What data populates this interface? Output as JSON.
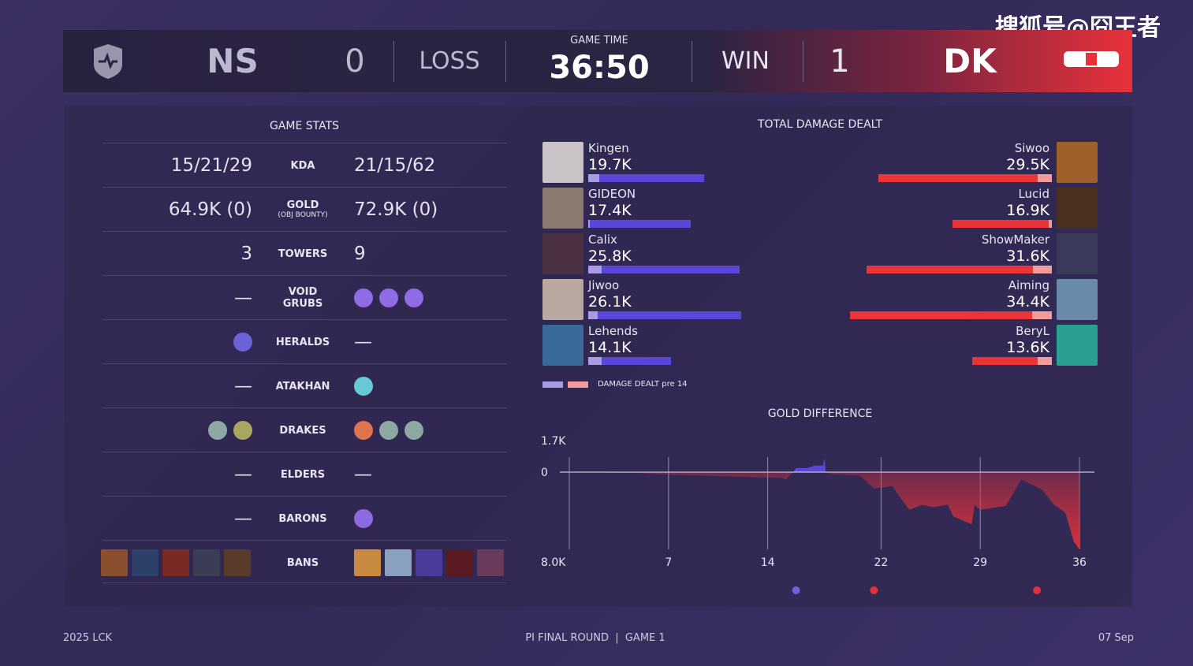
{
  "watermark": "搜狐号@囧王者",
  "header": {
    "left_team": "NS",
    "left_score": "0",
    "left_result": "LOSS",
    "game_time_label": "GAME TIME",
    "game_time": "36:50",
    "right_result": "WIN",
    "right_score": "1",
    "right_team": "DK",
    "accent_right": "#e8323a"
  },
  "game_stats": {
    "title": "GAME STATS",
    "rows": [
      {
        "label": "KDA",
        "left": "15/21/29",
        "right": "21/15/62"
      },
      {
        "label": "GOLD",
        "sublabel": "(OBJ BOUNTY)",
        "left": "64.9K (0)",
        "right": "72.9K (0)"
      },
      {
        "label": "TOWERS",
        "left": "3",
        "right": "9"
      },
      {
        "label": "VOID GRUBS",
        "left": "—",
        "right_icons": [
          "void-grub-icon",
          "void-grub-icon",
          "void-grub-icon"
        ]
      },
      {
        "label": "HERALDS",
        "left_icons": [
          "herald-icon"
        ],
        "right": "—"
      },
      {
        "label": "ATAKHAN",
        "left": "—",
        "right_icons": [
          "atakhan-icon"
        ]
      },
      {
        "label": "DRAKES",
        "left_icons": [
          "cloud-drake-icon",
          "chemtech-drake-icon"
        ],
        "right_icons": [
          "infernal-drake-icon",
          "cloud-drake-icon",
          "cloud-drake-icon"
        ]
      },
      {
        "label": "ELDERS",
        "left": "—",
        "right": "—"
      },
      {
        "label": "BARONS",
        "left": "—",
        "right_icons": [
          "baron-icon"
        ]
      },
      {
        "label": "BANS",
        "left_icons": [
          "ban-champion-icon",
          "ban-champion-icon",
          "ban-champion-icon",
          "ban-champion-icon",
          "ban-champion-icon"
        ],
        "right_icons": [
          "ban-champion-icon",
          "ban-champion-icon",
          "ban-champion-icon",
          "ban-champion-icon",
          "ban-champion-icon"
        ]
      }
    ]
  },
  "damage": {
    "title": "TOTAL DAMAGE DEALT",
    "legend": "DAMAGE DEALT pre 14",
    "colors": {
      "left": "#5a46d8",
      "left_pre": "#a99ae6",
      "right": "#ea3437",
      "right_pre": "#f39a9a"
    },
    "left": [
      {
        "name": "Kingen",
        "value": "19.7K",
        "k": 19.7,
        "pre14_k": 1.9
      },
      {
        "name": "GIDEON",
        "value": "17.4K",
        "k": 17.4,
        "pre14_k": 0.1
      },
      {
        "name": "Calix",
        "value": "25.8K",
        "k": 25.8,
        "pre14_k": 2.3
      },
      {
        "name": "Jiwoo",
        "value": "26.1K",
        "k": 26.1,
        "pre14_k": 1.6
      },
      {
        "name": "Lehends",
        "value": "14.1K",
        "k": 14.1,
        "pre14_k": 2.3
      }
    ],
    "right": [
      {
        "name": "Siwoo",
        "value": "29.5K",
        "k": 29.5,
        "pre14_k": 2.4
      },
      {
        "name": "Lucid",
        "value": "16.9K",
        "k": 16.9,
        "pre14_k": 0.5
      },
      {
        "name": "ShowMaker",
        "value": "31.6K",
        "k": 31.6,
        "pre14_k": 3.2
      },
      {
        "name": "Aiming",
        "value": "34.4K",
        "k": 34.4,
        "pre14_k": 3.3
      },
      {
        "name": "BeryL",
        "value": "13.6K",
        "k": 13.6,
        "pre14_k": 2.4
      }
    ]
  },
  "chart_data": {
    "type": "area",
    "title": "GOLD DIFFERENCE",
    "y_top_label": "1.7K",
    "y_zero_label": "0",
    "y_bottom_label": "8.0K",
    "ylim": [
      -8000,
      1700
    ],
    "xticks": [
      "7",
      "14",
      "22",
      "29",
      "36"
    ],
    "xlim": [
      0,
      36
    ],
    "x": [
      0,
      5,
      6.2,
      10,
      15,
      15.3,
      15.8,
      16,
      16.8,
      17.3,
      17.9,
      18,
      18.1,
      18.5,
      20.5,
      21.5,
      22.8,
      23.3,
      24,
      24.9,
      25.7,
      26.7,
      27.1,
      28.4,
      28.6,
      29,
      30.8,
      31.3,
      31.9,
      33.4,
      34.2,
      35,
      35.6,
      36
    ],
    "y": [
      0,
      -100,
      -220,
      -400,
      -600,
      -760,
      0,
      460,
      460,
      740,
      740,
      1600,
      0,
      -220,
      -350,
      -1700,
      -1450,
      -2540,
      -3900,
      -3400,
      -3630,
      -3360,
      -4590,
      -5400,
      -3400,
      -3900,
      -3500,
      -2270,
      -760,
      -1860,
      -3360,
      -4180,
      -7200,
      -8000
    ],
    "colors": {
      "positive": "#5a46d8",
      "negative": "#e0323a"
    },
    "event_icons": [
      {
        "x": 16,
        "icon": "herald-icon",
        "team": "left"
      },
      {
        "x": 21.5,
        "icon": "atakhan-icon",
        "team": "right"
      },
      {
        "x": 33,
        "icon": "baron-icon",
        "team": "right"
      }
    ]
  },
  "footer": {
    "left": "2025 LCK",
    "center": "PI FINAL ROUND  |  GAME 1",
    "right": "07 Sep"
  }
}
